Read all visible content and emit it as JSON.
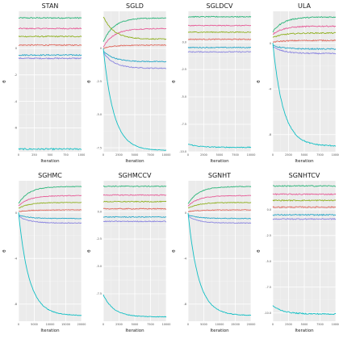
{
  "chart_data": [
    {
      "type": "line",
      "title": "STAN",
      "xlabel": "Iteration",
      "ylabel": "θ",
      "xlim": [
        0,
        1000
      ],
      "ylim": [
        -7.8,
        2.8
      ],
      "x_ticks": [
        0,
        250,
        500,
        750,
        1000
      ],
      "y_ticks": [
        0,
        -2,
        -4,
        -6
      ],
      "x_tick_labels": [
        "0",
        "250",
        "500",
        "750",
        "1000"
      ],
      "y_tick_labels": [
        "0",
        "-2",
        "-4",
        "-6"
      ],
      "iterations": 1000,
      "series": [
        {
          "color": "#2cb57a",
          "start": 2.3,
          "end": 2.3,
          "noise": 0.05
        },
        {
          "color": "#e75c98",
          "start": 1.5,
          "end": 1.5,
          "noise": 0.05
        },
        {
          "color": "#8fb020",
          "start": 0.9,
          "end": 0.9,
          "noise": 0.05
        },
        {
          "color": "#e0655a",
          "start": 0.25,
          "end": 0.25,
          "noise": 0.05
        },
        {
          "color": "#27a7c7",
          "start": -0.5,
          "end": -0.5,
          "noise": 0.05
        },
        {
          "color": "#8a84e0",
          "start": -0.75,
          "end": -0.75,
          "noise": 0.05
        },
        {
          "color": "#12bfc4",
          "start": -7.6,
          "end": -7.6,
          "noise": 0.06
        }
      ]
    },
    {
      "type": "line",
      "title": "SGLD",
      "xlabel": "Iteration",
      "ylabel": "θ",
      "xlim": [
        0,
        10000
      ],
      "ylim": [
        -7.8,
        2.8
      ],
      "x_ticks": [
        0,
        2500,
        5000,
        7500,
        10000
      ],
      "y_ticks": [
        0,
        -2.5,
        -5,
        -7.5
      ],
      "x_tick_labels": [
        "0",
        "2500",
        "5000",
        "7500",
        "10000"
      ],
      "y_tick_labels": [
        "0",
        "-2.5",
        "-5.0",
        "-7.5"
      ],
      "iterations": 10000,
      "series": [
        {
          "color": "#2cb57a",
          "start": 0.5,
          "end": 2.3,
          "noise": 0.04
        },
        {
          "color": "#e75c98",
          "start": 0.1,
          "end": 1.5,
          "noise": 0.04
        },
        {
          "color": "#8fb020",
          "start": 2.4,
          "end": 0.7,
          "noise": 0.04
        },
        {
          "color": "#e0655a",
          "start": 0.0,
          "end": 0.25,
          "noise": 0.04
        },
        {
          "color": "#27a7c7",
          "start": -0.2,
          "end": -1.0,
          "noise": 0.04
        },
        {
          "color": "#8a84e0",
          "start": -0.3,
          "end": -1.5,
          "noise": 0.04
        },
        {
          "color": "#12bfc4",
          "start": 0.0,
          "end": -7.7,
          "noise": 0.02
        }
      ]
    },
    {
      "type": "line",
      "title": "SGLDCV",
      "xlabel": "Iteration",
      "ylabel": "θ",
      "xlim": [
        0,
        10000
      ],
      "ylim": [
        -10,
        2.8
      ],
      "x_ticks": [
        0,
        2500,
        5000,
        7500,
        10000
      ],
      "y_ticks": [
        0,
        -2.5,
        -5,
        -7.5,
        -10
      ],
      "x_tick_labels": [
        "0",
        "2500",
        "5000",
        "7500",
        "10000"
      ],
      "y_tick_labels": [
        "0.0",
        "-2.5",
        "-5.0",
        "-7.5",
        "-10.0"
      ],
      "iterations": 10000,
      "series": [
        {
          "color": "#2cb57a",
          "start": 2.3,
          "end": 2.3,
          "noise": 0.04
        },
        {
          "color": "#e75c98",
          "start": 1.5,
          "end": 1.5,
          "noise": 0.04
        },
        {
          "color": "#8fb020",
          "start": 0.9,
          "end": 0.9,
          "noise": 0.04
        },
        {
          "color": "#e0655a",
          "start": 0.25,
          "end": 0.25,
          "noise": 0.04
        },
        {
          "color": "#27a7c7",
          "start": -0.5,
          "end": -0.5,
          "noise": 0.04
        },
        {
          "color": "#8a84e0",
          "start": -0.9,
          "end": -0.9,
          "noise": 0.04
        },
        {
          "color": "#12bfc4",
          "start": -9.3,
          "end": -9.6,
          "noise": 0.04
        }
      ]
    },
    {
      "type": "line",
      "title": "ULA",
      "xlabel": "Iteration",
      "ylabel": "θ",
      "xlim": [
        0,
        10000
      ],
      "ylim": [
        -9.5,
        2.8
      ],
      "x_ticks": [
        0,
        2500,
        5000,
        7500,
        10000
      ],
      "y_ticks": [
        0,
        -4,
        -8
      ],
      "x_tick_labels": [
        "0",
        "2500",
        "5000",
        "7500",
        "10000"
      ],
      "y_tick_labels": [
        "0",
        "-4",
        "-8"
      ],
      "iterations": 10000,
      "series": [
        {
          "color": "#2cb57a",
          "start": 1.0,
          "end": 2.3,
          "noise": 0.05
        },
        {
          "color": "#e75c98",
          "start": 0.8,
          "end": 1.5,
          "noise": 0.05
        },
        {
          "color": "#8fb020",
          "start": 0.5,
          "end": 0.9,
          "noise": 0.05
        },
        {
          "color": "#e0655a",
          "start": 0.1,
          "end": 0.25,
          "noise": 0.05
        },
        {
          "color": "#27a7c7",
          "start": -0.2,
          "end": -0.5,
          "noise": 0.05
        },
        {
          "color": "#8a84e0",
          "start": -0.3,
          "end": -0.9,
          "noise": 0.05
        },
        {
          "color": "#12bfc4",
          "start": 0.0,
          "end": -9.0,
          "noise": 0.05
        }
      ]
    },
    {
      "type": "line",
      "title": "SGHMC",
      "xlabel": "Iteration",
      "ylabel": "θ",
      "xlim": [
        0,
        20000
      ],
      "ylim": [
        -9.5,
        2.8
      ],
      "x_ticks": [
        0,
        5000,
        10000,
        15000,
        20000
      ],
      "y_ticks": [
        0,
        -4,
        -8
      ],
      "x_tick_labels": [
        "0",
        "5000",
        "10000",
        "15000",
        "20000"
      ],
      "y_tick_labels": [
        "0",
        "-4",
        "-8"
      ],
      "iterations": 20000,
      "series": [
        {
          "color": "#2cb57a",
          "start": 0.8,
          "end": 2.3,
          "noise": 0.03
        },
        {
          "color": "#e75c98",
          "start": 0.6,
          "end": 1.5,
          "noise": 0.03
        },
        {
          "color": "#8fb020",
          "start": 0.4,
          "end": 0.9,
          "noise": 0.03
        },
        {
          "color": "#e0655a",
          "start": 0.1,
          "end": 0.25,
          "noise": 0.03
        },
        {
          "color": "#27a7c7",
          "start": -0.2,
          "end": -0.5,
          "noise": 0.03
        },
        {
          "color": "#8a84e0",
          "start": -0.3,
          "end": -0.9,
          "noise": 0.03
        },
        {
          "color": "#12bfc4",
          "start": 0.0,
          "end": -9.0,
          "noise": 0.03
        }
      ]
    },
    {
      "type": "line",
      "title": "SGHMCCV",
      "xlabel": "Iteration",
      "ylabel": "θ",
      "xlim": [
        0,
        10000
      ],
      "ylim": [
        -10,
        2.8
      ],
      "x_ticks": [
        0,
        2500,
        5000,
        7500,
        10000
      ],
      "y_ticks": [
        0,
        -2.5,
        -5,
        -7.5
      ],
      "x_tick_labels": [
        "0",
        "2500",
        "5000",
        "7500",
        "10000"
      ],
      "y_tick_labels": [
        "0.0",
        "-2.5",
        "-5.0",
        "-7.5"
      ],
      "iterations": 10000,
      "series": [
        {
          "color": "#2cb57a",
          "start": 2.3,
          "end": 2.3,
          "noise": 0.04
        },
        {
          "color": "#e75c98",
          "start": 1.5,
          "end": 1.5,
          "noise": 0.04
        },
        {
          "color": "#8fb020",
          "start": 0.9,
          "end": 0.9,
          "noise": 0.04
        },
        {
          "color": "#e0655a",
          "start": 0.25,
          "end": 0.25,
          "noise": 0.04
        },
        {
          "color": "#27a7c7",
          "start": -0.5,
          "end": -0.5,
          "noise": 0.04
        },
        {
          "color": "#8a84e0",
          "start": -0.9,
          "end": -0.9,
          "noise": 0.04
        },
        {
          "color": "#12bfc4",
          "start": -7.6,
          "end": -9.6,
          "noise": 0.03
        }
      ]
    },
    {
      "type": "line",
      "title": "SGNHT",
      "xlabel": "Iteration",
      "ylabel": "θ",
      "xlim": [
        0,
        20000
      ],
      "ylim": [
        -9.5,
        2.8
      ],
      "x_ticks": [
        0,
        5000,
        10000,
        15000,
        20000
      ],
      "y_ticks": [
        0,
        -4,
        -8
      ],
      "x_tick_labels": [
        "0",
        "5000",
        "10000",
        "15000",
        "20000"
      ],
      "y_tick_labels": [
        "0",
        "-4",
        "-8"
      ],
      "iterations": 20000,
      "series": [
        {
          "color": "#2cb57a",
          "start": 0.8,
          "end": 2.3,
          "noise": 0.03
        },
        {
          "color": "#e75c98",
          "start": 0.6,
          "end": 1.5,
          "noise": 0.03
        },
        {
          "color": "#8fb020",
          "start": 0.4,
          "end": 0.9,
          "noise": 0.03
        },
        {
          "color": "#e0655a",
          "start": 0.1,
          "end": 0.25,
          "noise": 0.03
        },
        {
          "color": "#27a7c7",
          "start": -0.2,
          "end": -0.5,
          "noise": 0.03
        },
        {
          "color": "#8a84e0",
          "start": -0.3,
          "end": -0.9,
          "noise": 0.03
        },
        {
          "color": "#12bfc4",
          "start": 0.0,
          "end": -9.0,
          "noise": 0.03
        }
      ]
    },
    {
      "type": "line",
      "title": "SGNHTCV",
      "xlabel": "Iteration",
      "ylabel": "θ",
      "xlim": [
        0,
        10000
      ],
      "ylim": [
        -10.8,
        2.8
      ],
      "x_ticks": [
        0,
        2500,
        5000,
        7500,
        10000
      ],
      "y_ticks": [
        0,
        -2.5,
        -5,
        -7.5,
        -10
      ],
      "x_tick_labels": [
        "0",
        "2500",
        "5000",
        "7500",
        "10000"
      ],
      "y_tick_labels": [
        "0.0",
        "-2.5",
        "-5.0",
        "-7.5",
        "-10.0"
      ],
      "iterations": 10000,
      "series": [
        {
          "color": "#2cb57a",
          "start": 2.3,
          "end": 2.3,
          "noise": 0.05
        },
        {
          "color": "#e75c98",
          "start": 1.5,
          "end": 1.5,
          "noise": 0.05
        },
        {
          "color": "#8fb020",
          "start": 0.9,
          "end": 0.9,
          "noise": 0.05
        },
        {
          "color": "#e0655a",
          "start": 0.25,
          "end": 0.25,
          "noise": 0.05
        },
        {
          "color": "#27a7c7",
          "start": -0.5,
          "end": -0.5,
          "noise": 0.05
        },
        {
          "color": "#8a84e0",
          "start": -0.9,
          "end": -0.9,
          "noise": 0.05
        },
        {
          "color": "#12bfc4",
          "start": -9.3,
          "end": -10.1,
          "noise": 0.05
        }
      ]
    }
  ],
  "colors": {
    "panel_background": "#ebebeb",
    "grid_major": "#ffffff",
    "grid_minor": "#f5f5f5",
    "text": "#1a1a1a",
    "tick_text": "#4d4d4d"
  }
}
